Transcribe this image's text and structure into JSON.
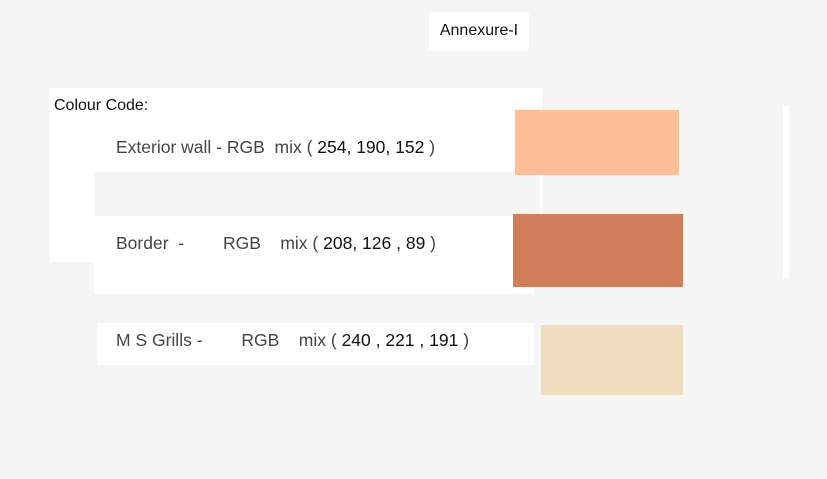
{
  "title": "Annexure-I",
  "heading": "Colour Code:",
  "rows": [
    {
      "label": "Exterior wall - RGB  mix ( ",
      "values": "254, 190, 152",
      "close": " )",
      "color": "#febe98"
    },
    {
      "label": "Border  -        RGB    mix ( ",
      "values": "208, 126 , 89",
      "close": " )",
      "color": "#d07e59"
    },
    {
      "label": "M S Grills -        RGB    mix ( ",
      "values": "240 , 221 , 191",
      "close": " )",
      "color": "#f0ddbf"
    }
  ]
}
